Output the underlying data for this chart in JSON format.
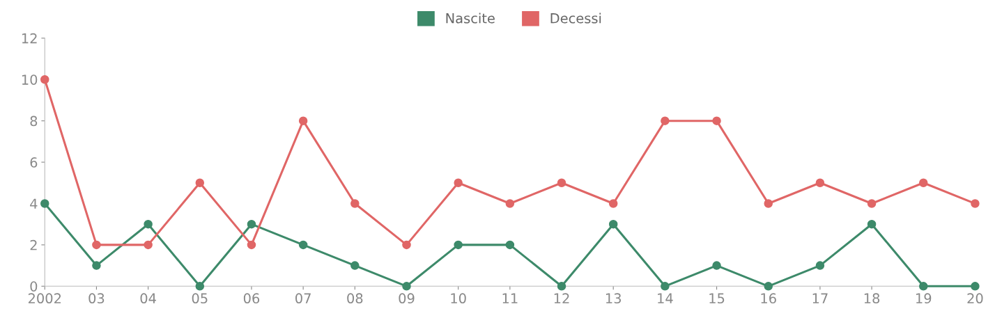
{
  "chart_data": {
    "type": "line",
    "categories": [
      "2002",
      "03",
      "04",
      "05",
      "06",
      "07",
      "08",
      "09",
      "10",
      "11",
      "12",
      "13",
      "14",
      "15",
      "16",
      "17",
      "18",
      "19",
      "20"
    ],
    "series": [
      {
        "name": "Nascite",
        "color": "#3d8a6a",
        "values": [
          4,
          1,
          3,
          0,
          3,
          2,
          1,
          0,
          2,
          2,
          0,
          3,
          0,
          1,
          0,
          1,
          3,
          0,
          0
        ]
      },
      {
        "name": "Decessi",
        "color": "#e06666",
        "values": [
          10,
          2,
          2,
          5,
          2,
          8,
          4,
          2,
          5,
          4,
          5,
          4,
          8,
          8,
          4,
          5,
          4,
          5,
          4
        ]
      }
    ],
    "ylim": [
      0,
      12
    ],
    "yticks": [
      0,
      2,
      4,
      6,
      8,
      10,
      12
    ],
    "grid": false,
    "legend": "top",
    "marker": "circle",
    "line_style": "solid"
  }
}
